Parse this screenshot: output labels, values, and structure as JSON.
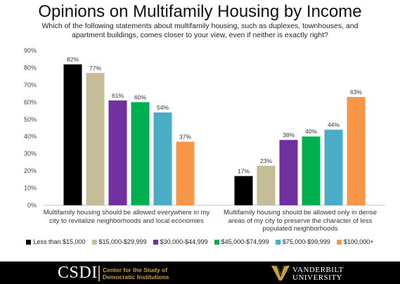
{
  "title": "Opinions on Multifamily Housing by Income",
  "subtitle": "Which of the following statements about multifamily housing, such as duplexes, townhouses, and apartment buildings, comes closer to your view, even if neither is exactly right?",
  "chart_data": {
    "type": "bar",
    "title": "Opinions on Multifamily Housing by Income",
    "subtitle": "Which of the following statements about multifamily housing, such as duplexes, townhouses, and apartment buildings, comes closer to your view, even if neither is exactly right?",
    "categories": [
      "Multifamily housing should be allowed everywhere in my city to revitalize neighborhoods and local economies",
      "Multifamily housing should be allowed only in dense areas of my city to preserve the character of less populated neighborhoods"
    ],
    "series": [
      {
        "name": "Less than $15,000",
        "color": "#000000",
        "values": [
          82,
          17
        ],
        "labels": [
          "82%",
          "17%"
        ]
      },
      {
        "name": "$15,000-$29,999",
        "color": "#c4bd97",
        "values": [
          77,
          23
        ],
        "labels": [
          "77%",
          "23%"
        ]
      },
      {
        "name": "$30,000-$44,999",
        "color": "#7030a0",
        "values": [
          61,
          38
        ],
        "labels": [
          "61%",
          "38%"
        ]
      },
      {
        "name": "$45,000-$74,999",
        "color": "#00b050",
        "values": [
          60,
          40
        ],
        "labels": [
          "60%",
          "40%"
        ]
      },
      {
        "name": "$75,000-$99,999",
        "color": "#4bacc6",
        "values": [
          54,
          44
        ],
        "labels": [
          "54%",
          "44%"
        ]
      },
      {
        "name": "$100,000+",
        "color": "#f79646",
        "values": [
          37,
          63
        ],
        "labels": [
          "37%",
          "63%"
        ]
      }
    ],
    "ylim": [
      0,
      90
    ],
    "yticks": [
      "0%",
      "10%",
      "20%",
      "30%",
      "40%",
      "50%",
      "60%",
      "70%",
      "80%",
      "90%"
    ],
    "xlabel": "",
    "ylabel": "",
    "grid": false,
    "legend_position": "bottom"
  },
  "footer": {
    "csdi_logo": "CSDI",
    "csdi_name_line1": "Center for the Study of",
    "csdi_name_line2": "Democratic Institutions",
    "vu_line1": "VANDERBILT",
    "vu_line2": "UNIVERSITY",
    "gold": "#c9a13b"
  }
}
